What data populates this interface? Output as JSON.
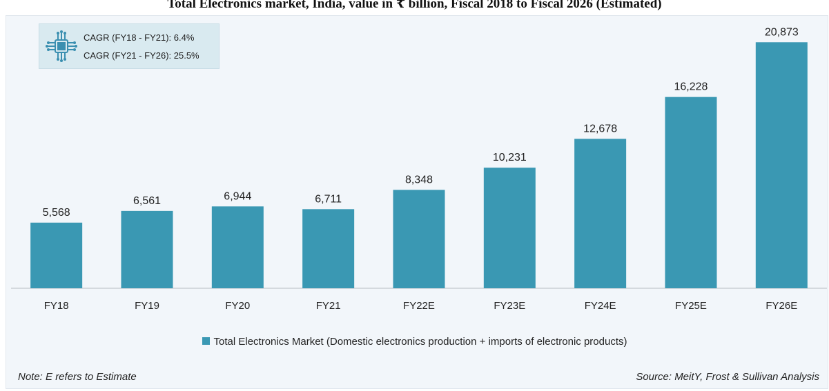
{
  "chart_data": {
    "type": "bar",
    "title": "Total Electronics market, India, value in ₹ billion, Fiscal 2018 to Fiscal 2026 (Estimated)",
    "categories": [
      "FY18",
      "FY19",
      "FY20",
      "FY21",
      "FY22E",
      "FY23E",
      "FY24E",
      "FY25E",
      "FY26E"
    ],
    "series": [
      {
        "name": "Total Electronics Market (Domestic electronics production + imports of electronic products)",
        "values": [
          5568,
          6561,
          6944,
          6711,
          8348,
          10231,
          12678,
          16228,
          20873
        ],
        "labels": [
          "5,568",
          "6,561",
          "6,944",
          "6,711",
          "8,348",
          "10,231",
          "12,678",
          "16,228",
          "20,873"
        ]
      }
    ],
    "ylim": [
      0,
      22000
    ],
    "grid": false,
    "legend": "bottom",
    "bar_color": "#3a98b3",
    "annotations": {
      "cagr_1": "CAGR (FY18 - FY21): 6.4%",
      "cagr_2": "CAGR (FY21 - FY26): 25.5%"
    },
    "note": "Note: E refers to Estimate",
    "source": "Source: MeitY, Frost & Sullivan Analysis"
  },
  "icons": {
    "cagr_icon": "circuit-chip-icon"
  }
}
